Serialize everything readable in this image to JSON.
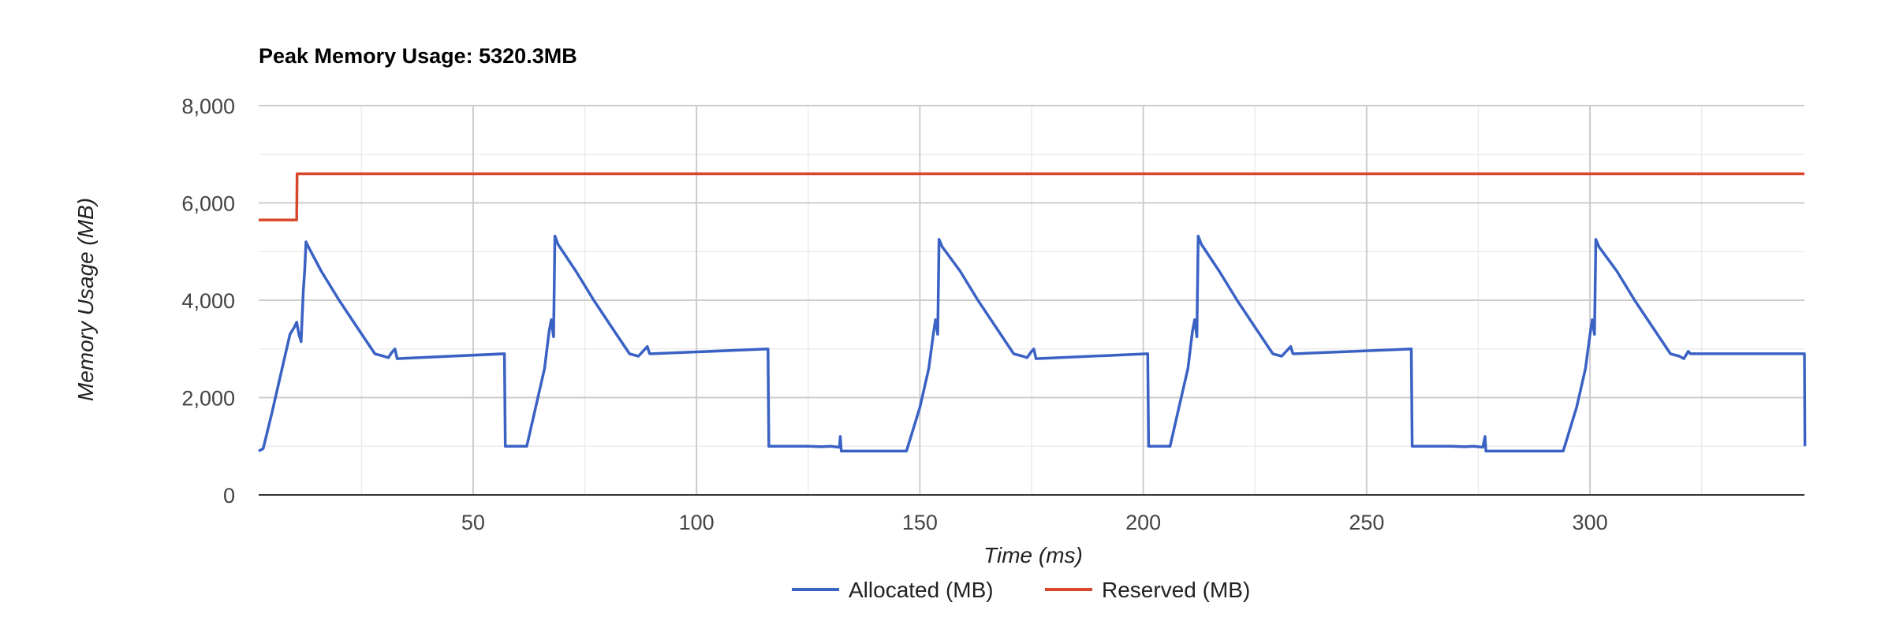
{
  "chart_data": {
    "type": "line",
    "title": "Peak Memory Usage: 5320.3MB",
    "xlabel": "Time (ms)",
    "ylabel": "Memory Usage (MB)",
    "xlim": [
      2,
      348
    ],
    "ylim": [
      0,
      8000
    ],
    "x_ticks": [
      50,
      100,
      150,
      200,
      250,
      300
    ],
    "x_tick_labels": [
      "50",
      "100",
      "150",
      "200",
      "250",
      "300"
    ],
    "y_ticks": [
      0,
      2000,
      4000,
      6000,
      8000
    ],
    "y_tick_labels": [
      "0",
      "2,000",
      "4,000",
      "6,000",
      "8,000"
    ],
    "grid": true,
    "legend_position": "bottom",
    "series": [
      {
        "name": "Allocated (MB)",
        "color": "#3a62c4",
        "x": [
          2,
          3,
          5,
          7,
          9,
          10,
          10.5,
          11,
          11.5,
          12,
          12.3,
          12.6,
          13,
          16,
          20,
          24,
          28,
          30,
          31,
          32,
          32.5,
          33,
          57,
          57.2,
          60,
          62,
          64,
          66,
          67,
          67.5,
          68,
          68.3,
          69,
          73,
          77,
          81,
          85,
          87,
          88,
          89,
          89.5,
          90,
          116,
          116.2,
          120,
          125,
          128,
          130,
          132,
          132.2,
          132.4,
          133,
          140,
          147,
          150,
          152,
          153,
          153.5,
          154,
          154.3,
          155,
          159,
          163,
          167,
          171,
          173,
          174,
          175,
          175.5,
          176,
          201,
          201.2,
          204,
          206,
          208,
          210,
          211,
          211.5,
          212,
          212.3,
          213,
          217,
          221,
          225,
          229,
          231,
          232,
          233,
          233.5,
          234,
          260,
          260.2,
          264,
          269,
          272,
          274,
          276,
          276.5,
          276.7,
          277,
          284,
          294,
          297,
          299,
          300,
          300.5,
          301,
          301.3,
          302,
          306,
          310,
          314,
          318,
          320,
          321,
          322,
          322.5,
          323,
          348,
          348.1
        ],
        "values": [
          900,
          950,
          1700,
          2500,
          3300,
          3450,
          3550,
          3300,
          3150,
          4200,
          4600,
          5200,
          5120,
          4600,
          4000,
          3450,
          2900,
          2850,
          2820,
          2950,
          3000,
          2800,
          2900,
          1000,
          1000,
          1000,
          1800,
          2600,
          3350,
          3600,
          3250,
          5320,
          5150,
          4600,
          4000,
          3450,
          2900,
          2850,
          2950,
          3050,
          2900,
          2900,
          3000,
          1000,
          1000,
          1000,
          990,
          1000,
          980,
          1200,
          900,
          900,
          900,
          900,
          1800,
          2600,
          3300,
          3600,
          3300,
          5250,
          5100,
          4600,
          4000,
          3450,
          2900,
          2850,
          2820,
          2950,
          3000,
          2800,
          2900,
          1000,
          1000,
          1000,
          1800,
          2600,
          3350,
          3600,
          3250,
          5320,
          5150,
          4600,
          4000,
          3450,
          2900,
          2850,
          2950,
          3050,
          2900,
          2900,
          3000,
          1000,
          1000,
          1000,
          990,
          1000,
          980,
          1200,
          900,
          900,
          900,
          900,
          1800,
          2600,
          3300,
          3600,
          3300,
          5250,
          5100,
          4600,
          4000,
          3450,
          2900,
          2850,
          2800,
          2950,
          2900,
          2900,
          2900,
          1000
        ]
      },
      {
        "name": "Reserved (MB)",
        "color": "#d9472b",
        "x": [
          2,
          10.5,
          10.6,
          348
        ],
        "values": [
          5650,
          5650,
          6600,
          6600
        ]
      }
    ]
  }
}
